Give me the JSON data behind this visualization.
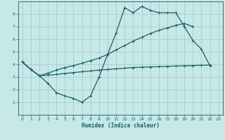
{
  "xlabel": "Humidex (Indice chaleur)",
  "bg_color": "#c6e8e8",
  "grid_color": "#a8cccc",
  "line_color": "#1a6060",
  "xlim": [
    -0.5,
    23.5
  ],
  "ylim": [
    0,
    9
  ],
  "xticks": [
    0,
    1,
    2,
    3,
    4,
    5,
    6,
    7,
    8,
    9,
    10,
    11,
    12,
    13,
    14,
    15,
    16,
    17,
    18,
    19,
    20,
    21,
    22,
    23
  ],
  "yticks": [
    1,
    2,
    3,
    4,
    5,
    6,
    7,
    8
  ],
  "curve1_x": [
    0,
    1,
    2,
    3,
    4,
    5,
    6,
    7,
    8,
    9,
    10,
    11,
    12,
    13,
    14,
    15,
    16,
    17,
    18,
    19,
    20,
    21,
    22
  ],
  "curve1_y": [
    4.2,
    3.6,
    3.1,
    2.5,
    1.75,
    1.5,
    1.3,
    1.0,
    1.5,
    3.0,
    4.8,
    6.5,
    8.5,
    8.1,
    8.6,
    8.3,
    8.1,
    8.1,
    8.1,
    7.0,
    5.9,
    5.2,
    3.9
  ],
  "curve2_x": [
    0,
    1,
    2,
    3,
    4,
    5,
    6,
    7,
    8,
    9,
    10,
    11,
    12,
    13,
    14,
    15,
    16,
    17,
    18,
    19,
    20,
    21,
    22
  ],
  "curve2_y": [
    4.2,
    3.6,
    3.1,
    3.15,
    3.2,
    3.28,
    3.35,
    3.42,
    3.48,
    3.55,
    3.6,
    3.65,
    3.7,
    3.75,
    3.78,
    3.8,
    3.82,
    3.85,
    3.87,
    3.89,
    3.91,
    3.93,
    3.95
  ],
  "curve3_x": [
    0,
    1,
    2,
    3,
    4,
    5,
    6,
    7,
    8,
    9,
    10,
    11,
    12,
    13,
    14,
    15,
    16,
    17,
    18,
    19,
    20
  ],
  "curve3_y": [
    4.2,
    3.6,
    3.1,
    3.3,
    3.55,
    3.75,
    3.9,
    4.1,
    4.3,
    4.5,
    4.8,
    5.15,
    5.5,
    5.85,
    6.15,
    6.45,
    6.7,
    6.9,
    7.1,
    7.25,
    7.0
  ],
  "marker_size": 2.5,
  "line_width": 0.9
}
